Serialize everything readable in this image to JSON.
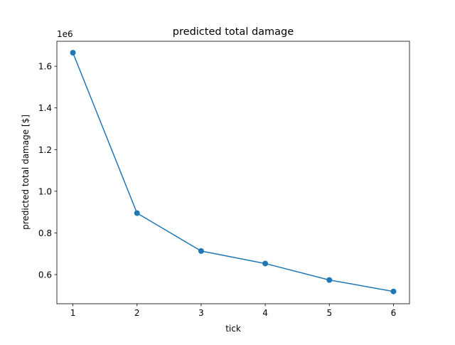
{
  "chart_data": {
    "type": "line",
    "title": "predicted total damage",
    "xlabel": "tick",
    "ylabel": "predicted total damage [$]",
    "y_offset_label": "1e6",
    "x": [
      1,
      2,
      3,
      4,
      5,
      6
    ],
    "series": [
      {
        "values": [
          1665000,
          895000,
          713000,
          653000,
          574000,
          519000
        ],
        "color": "#1f77b4",
        "marker": "circle"
      }
    ],
    "xlim": [
      0.75,
      6.25
    ],
    "ylim": [
      0.46,
      1.72
    ],
    "x_ticks": [
      1,
      2,
      3,
      4,
      5,
      6
    ],
    "x_tick_labels": [
      "1",
      "2",
      "3",
      "4",
      "5",
      "6"
    ],
    "y_ticks": [
      0.6,
      0.8,
      1.0,
      1.2,
      1.4,
      1.6
    ],
    "y_tick_labels": [
      "0.6",
      "0.8",
      "1.0",
      "1.2",
      "1.4",
      "1.6"
    ],
    "y_scale": 1000000,
    "grid": false,
    "legend": "none"
  }
}
